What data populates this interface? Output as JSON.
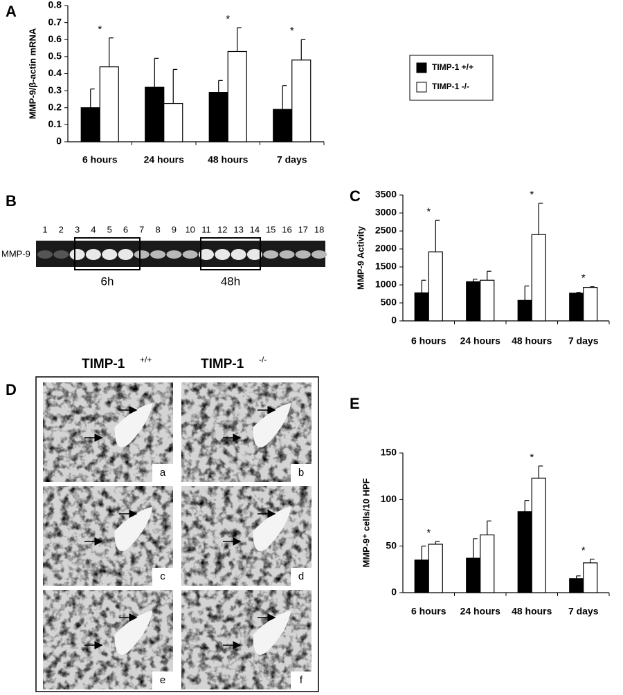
{
  "chart_data": [
    {
      "type": "bar",
      "panel": "A",
      "ylabel": "MMP-9/β-actin mRNA",
      "categories": [
        "6 hours",
        "24 hours",
        "48 hours",
        "7 days"
      ],
      "series": [
        {
          "name": "TIMP-1 +/+",
          "color": "#000000",
          "values": [
            0.2,
            0.32,
            0.29,
            0.19
          ],
          "errors": [
            0.11,
            0.17,
            0.07,
            0.14
          ]
        },
        {
          "name": "TIMP-1 -/-",
          "color": "#ffffff",
          "values": [
            0.44,
            0.225,
            0.53,
            0.48
          ],
          "errors": [
            0.17,
            0.2,
            0.14,
            0.12
          ]
        }
      ],
      "annotations": [
        {
          "text": "*",
          "category": "6 hours"
        },
        {
          "text": "*",
          "category": "48 hours"
        },
        {
          "text": "*",
          "category": "7 days"
        }
      ],
      "ylim": [
        0,
        0.8
      ],
      "yticks": [
        0,
        0.1,
        0.2,
        0.3,
        0.4,
        0.5,
        0.6,
        0.7,
        0.8
      ],
      "legend": "right"
    },
    {
      "type": "bar",
      "panel": "C",
      "ylabel": "MMP-9 Activity",
      "categories": [
        "6 hours",
        "24 hours",
        "48 hours",
        "7 days"
      ],
      "series": [
        {
          "color": "#000000",
          "values": [
            780,
            1090,
            570,
            770
          ],
          "errors": [
            350,
            70,
            400,
            20
          ]
        },
        {
          "color": "#ffffff",
          "values": [
            1920,
            1130,
            2400,
            930
          ],
          "errors": [
            880,
            250,
            870,
            20
          ]
        }
      ],
      "annotations": [
        {
          "text": "*",
          "category": "6 hours"
        },
        {
          "text": "*",
          "category": "48 hours"
        },
        {
          "text": "*",
          "category": "7 days"
        }
      ],
      "ylim": [
        0,
        3500
      ],
      "yticks": [
        0,
        500,
        1000,
        1500,
        2000,
        2500,
        3000,
        3500
      ]
    },
    {
      "type": "bar",
      "panel": "E",
      "ylabel": "MMP-9⁺ cells/10 HPF",
      "categories": [
        "6 hours",
        "24 hours",
        "48 hours",
        "7 days"
      ],
      "series": [
        {
          "color": "#000000",
          "values": [
            35,
            37,
            87,
            15
          ],
          "errors": [
            15,
            21,
            12,
            3
          ]
        },
        {
          "color": "#ffffff",
          "values": [
            52,
            62,
            123,
            32
          ],
          "errors": [
            3,
            15,
            13,
            4
          ]
        }
      ],
      "annotations": [
        {
          "text": "*",
          "category": "6 hours"
        },
        {
          "text": "*",
          "category": "48 hours"
        },
        {
          "text": "*",
          "category": "7 days"
        }
      ],
      "ylim": [
        0,
        150
      ],
      "yticks": [
        0,
        50,
        100,
        150
      ]
    }
  ],
  "gel": {
    "panel": "B",
    "label": "MMP-9",
    "lanes": [
      "1",
      "2",
      "3",
      "4",
      "5",
      "6",
      "7",
      "8",
      "9",
      "10",
      "11",
      "12",
      "13",
      "14",
      "15",
      "16",
      "17",
      "18"
    ],
    "boxes": [
      "6h",
      "48h"
    ]
  },
  "micrographs": {
    "panel": "D",
    "columns": [
      {
        "name": "TIMP-1",
        "sup": "+/+"
      },
      {
        "name": "TIMP-1",
        "sup": "-/-"
      }
    ],
    "images": [
      "a",
      "b",
      "c",
      "d",
      "e",
      "f"
    ]
  }
}
